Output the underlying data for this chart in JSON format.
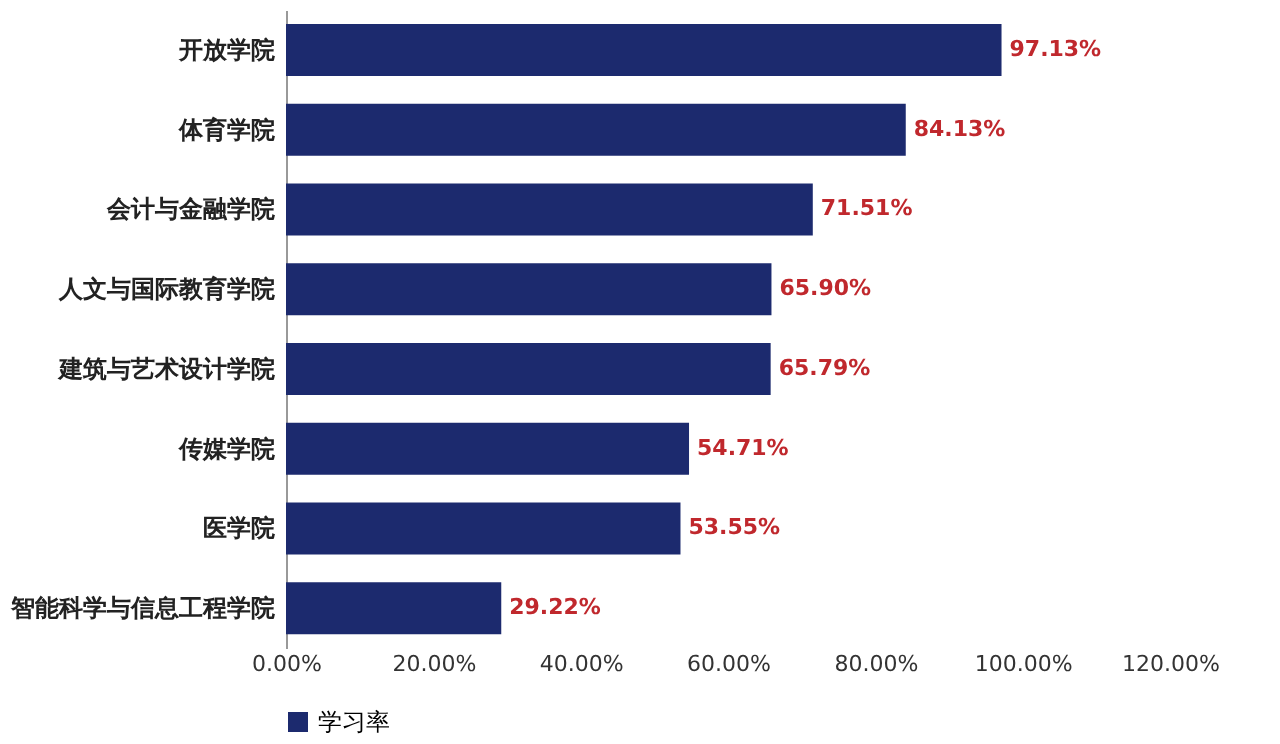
{
  "chart_data": {
    "type": "bar",
    "orientation": "horizontal",
    "categories": [
      "开放学院",
      "体育学院",
      "会计与金融学院",
      "人文与国际教育学院",
      "建筑与艺术设计学院",
      "传媒学院",
      "医学院",
      "智能科学与信息工程学院"
    ],
    "series": [
      {
        "name": "学习率",
        "color": "#1c2a6e",
        "values": [
          97.13,
          84.13,
          71.51,
          65.9,
          65.79,
          54.71,
          53.55,
          29.22
        ],
        "value_labels": [
          "97.13%",
          "84.13%",
          "71.51%",
          "65.90%",
          "65.79%",
          "54.71%",
          "53.55%",
          "29.22%"
        ]
      }
    ],
    "xlim": [
      0,
      120
    ],
    "xticks": [
      {
        "value": 0,
        "label": "0.00%"
      },
      {
        "value": 20,
        "label": "20.00%"
      },
      {
        "value": 40,
        "label": "40.00%"
      },
      {
        "value": 60,
        "label": "60.00%"
      },
      {
        "value": 80,
        "label": "80.00%"
      },
      {
        "value": 100,
        "label": "100.00%"
      },
      {
        "value": 120,
        "label": "120.00%"
      }
    ],
    "grid": false,
    "legend": "bottom"
  }
}
